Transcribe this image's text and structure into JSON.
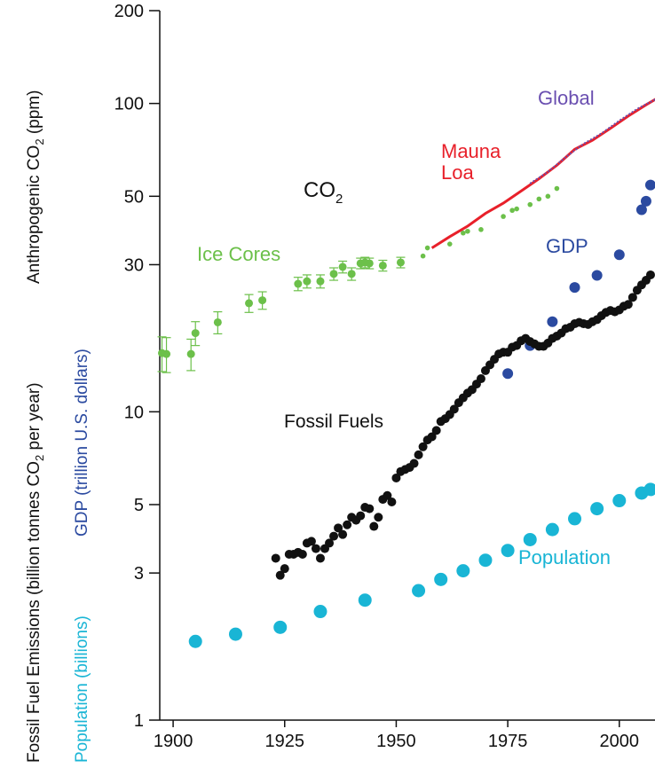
{
  "chart_data": {
    "type": "scatter",
    "scale": {
      "y": "log"
    },
    "xlim": [
      1897,
      2008
    ],
    "ylim": [
      1,
      200
    ],
    "x_ticks": [
      1900,
      1925,
      1950,
      1975,
      2000
    ],
    "x_tick_labels": [
      "1900",
      "1925",
      "1950",
      "1975",
      "2000"
    ],
    "y_ticks": [
      1,
      3,
      5,
      10,
      30,
      50,
      100,
      200
    ],
    "y_tick_labels": [
      "1",
      "3",
      "5",
      "10",
      "30",
      "50",
      "100",
      "200"
    ],
    "y_axis_labels": {
      "co2": {
        "main": "Anthropogenic CO",
        "sub": "2",
        "tail": " (ppm)",
        "color": "#111111"
      },
      "fossil": {
        "main": "Fossil Fuel Emissions (billion tonnes CO",
        "sub": "2",
        "tail": " per year)",
        "color": "#111111"
      },
      "gdp": {
        "text": "GDP (trillion U.S. dollars)",
        "color": "#2b4aa0"
      },
      "population": {
        "text": "Population (billions)",
        "color": "#19b5d5"
      }
    },
    "annotations": {
      "co2_title": {
        "main": "CO",
        "sub": "2",
        "color": "#111111"
      },
      "global": {
        "text": "Global",
        "color": "#6a4fb0"
      },
      "mauna_loa": {
        "lines": [
          "Mauna",
          "Loa"
        ],
        "color": "#e8202a"
      },
      "ice_cores": {
        "text": "Ice Cores",
        "color": "#6cc04a"
      },
      "gdp": {
        "text": "GDP",
        "color": "#2b4aa0"
      },
      "fossil_fuels": {
        "text": "Fossil Fuels",
        "color": "#111111"
      },
      "population": {
        "text": "Population",
        "color": "#19b5d5"
      }
    },
    "series": [
      {
        "name": "Ice Cores",
        "color": "#6cc04a",
        "x": [
          1897.5,
          1898.5,
          1904,
          1905,
          1910,
          1917,
          1920,
          1928,
          1930,
          1933,
          1936,
          1938,
          1940,
          1942,
          1943,
          1944,
          1947,
          1951
        ],
        "y": [
          15.5,
          15.4,
          15.4,
          18,
          19.5,
          22.5,
          23,
          26,
          26.5,
          26.5,
          28,
          29.5,
          28,
          30.3,
          30.5,
          30.3,
          29.8,
          30.5
        ],
        "err": [
          2.0,
          2.0,
          1.8,
          1.6,
          1.6,
          1.5,
          1.5,
          1.3,
          1.3,
          1.3,
          1.3,
          1.3,
          1.3,
          1.2,
          1.2,
          1.2,
          1.2,
          1.2
        ]
      },
      {
        "name": "Ice Cores (small)",
        "color": "#6cc04a",
        "x": [
          1956,
          1957,
          1962,
          1965,
          1966,
          1969,
          1974,
          1976,
          1977,
          1980,
          1982,
          1984,
          1986
        ],
        "y": [
          32,
          34,
          35,
          38,
          38.5,
          39,
          43,
          45,
          45.5,
          47,
          49,
          50,
          53
        ]
      },
      {
        "name": "Mauna Loa",
        "color": "#e8202a",
        "x": [
          1958,
          1962,
          1966,
          1970,
          1974,
          1978,
          1982,
          1986,
          1990,
          1994,
          1998,
          2002,
          2006,
          2009
        ],
        "y": [
          34,
          37,
          40,
          44,
          47.5,
          52,
          57,
          63,
          71,
          76,
          83,
          91,
          99,
          105
        ]
      },
      {
        "name": "Global",
        "color": "#6a4fb0",
        "x": [
          1980,
          1984,
          1988,
          1992,
          1996,
          2000,
          2004,
          2008
        ],
        "y": [
          55,
          60,
          67,
          74,
          80,
          88,
          96,
          103
        ]
      },
      {
        "name": "GDP",
        "color": "#2b4aa0",
        "x": [
          1975,
          1980,
          1985,
          1990,
          1995,
          2000,
          2005,
          2006,
          2007
        ],
        "y": [
          13.3,
          16.4,
          19.6,
          25.3,
          27.7,
          32.3,
          45.2,
          48.2,
          54.4
        ]
      },
      {
        "name": "Fossil Fuels",
        "color": "#111111",
        "x": [
          1923,
          1924,
          1925,
          1926,
          1927,
          1928,
          1929,
          1930,
          1931,
          1932,
          1933,
          1934,
          1935,
          1936,
          1937,
          1938,
          1939,
          1940,
          1941,
          1942,
          1943,
          1944,
          1945,
          1946,
          1947,
          1948,
          1949,
          1950,
          1951,
          1952,
          1953,
          1954,
          1955,
          1956,
          1957,
          1958,
          1959,
          1960,
          1961,
          1962,
          1963,
          1964,
          1965,
          1966,
          1967,
          1968,
          1969,
          1970,
          1971,
          1972,
          1973,
          1974,
          1975,
          1976,
          1977,
          1978,
          1979,
          1980,
          1981,
          1982,
          1983,
          1984,
          1985,
          1986,
          1987,
          1988,
          1989,
          1990,
          1991,
          1992,
          1993,
          1994,
          1995,
          1996,
          1997,
          1998,
          1999,
          2000,
          2001,
          2002,
          2003,
          2004,
          2005,
          2006,
          2007
        ],
        "y": [
          3.35,
          2.95,
          3.1,
          3.45,
          3.45,
          3.5,
          3.45,
          3.75,
          3.8,
          3.6,
          3.35,
          3.6,
          3.75,
          3.95,
          4.2,
          4.0,
          4.3,
          4.55,
          4.45,
          4.6,
          4.9,
          4.85,
          4.25,
          4.55,
          5.2,
          5.35,
          5.1,
          6.1,
          6.4,
          6.5,
          6.6,
          6.8,
          7.25,
          7.7,
          8.1,
          8.3,
          8.7,
          9.3,
          9.5,
          9.8,
          10.2,
          10.7,
          11.1,
          11.5,
          11.8,
          12.3,
          12.8,
          13.6,
          14.2,
          14.8,
          15.4,
          15.6,
          15.6,
          16.2,
          16.4,
          17.0,
          17.3,
          16.9,
          16.6,
          16.3,
          16.3,
          16.7,
          17.3,
          17.6,
          18.0,
          18.6,
          18.8,
          19.3,
          19.5,
          19.3,
          19.2,
          19.6,
          19.9,
          20.5,
          21.0,
          21.3,
          21.1,
          21.4,
          22.0,
          22.3,
          23.5,
          24.8,
          25.8,
          26.7,
          27.8
        ]
      },
      {
        "name": "Population",
        "color": "#19b5d5",
        "x": [
          1905,
          1914,
          1924,
          1933,
          1943,
          1955,
          1960,
          1965,
          1970,
          1975,
          1980,
          1985,
          1990,
          1995,
          2000,
          2005,
          2007
        ],
        "y": [
          1.8,
          1.9,
          2.0,
          2.25,
          2.45,
          2.63,
          2.86,
          3.05,
          3.3,
          3.55,
          3.85,
          4.15,
          4.5,
          4.85,
          5.15,
          5.45,
          5.6
        ]
      }
    ]
  }
}
